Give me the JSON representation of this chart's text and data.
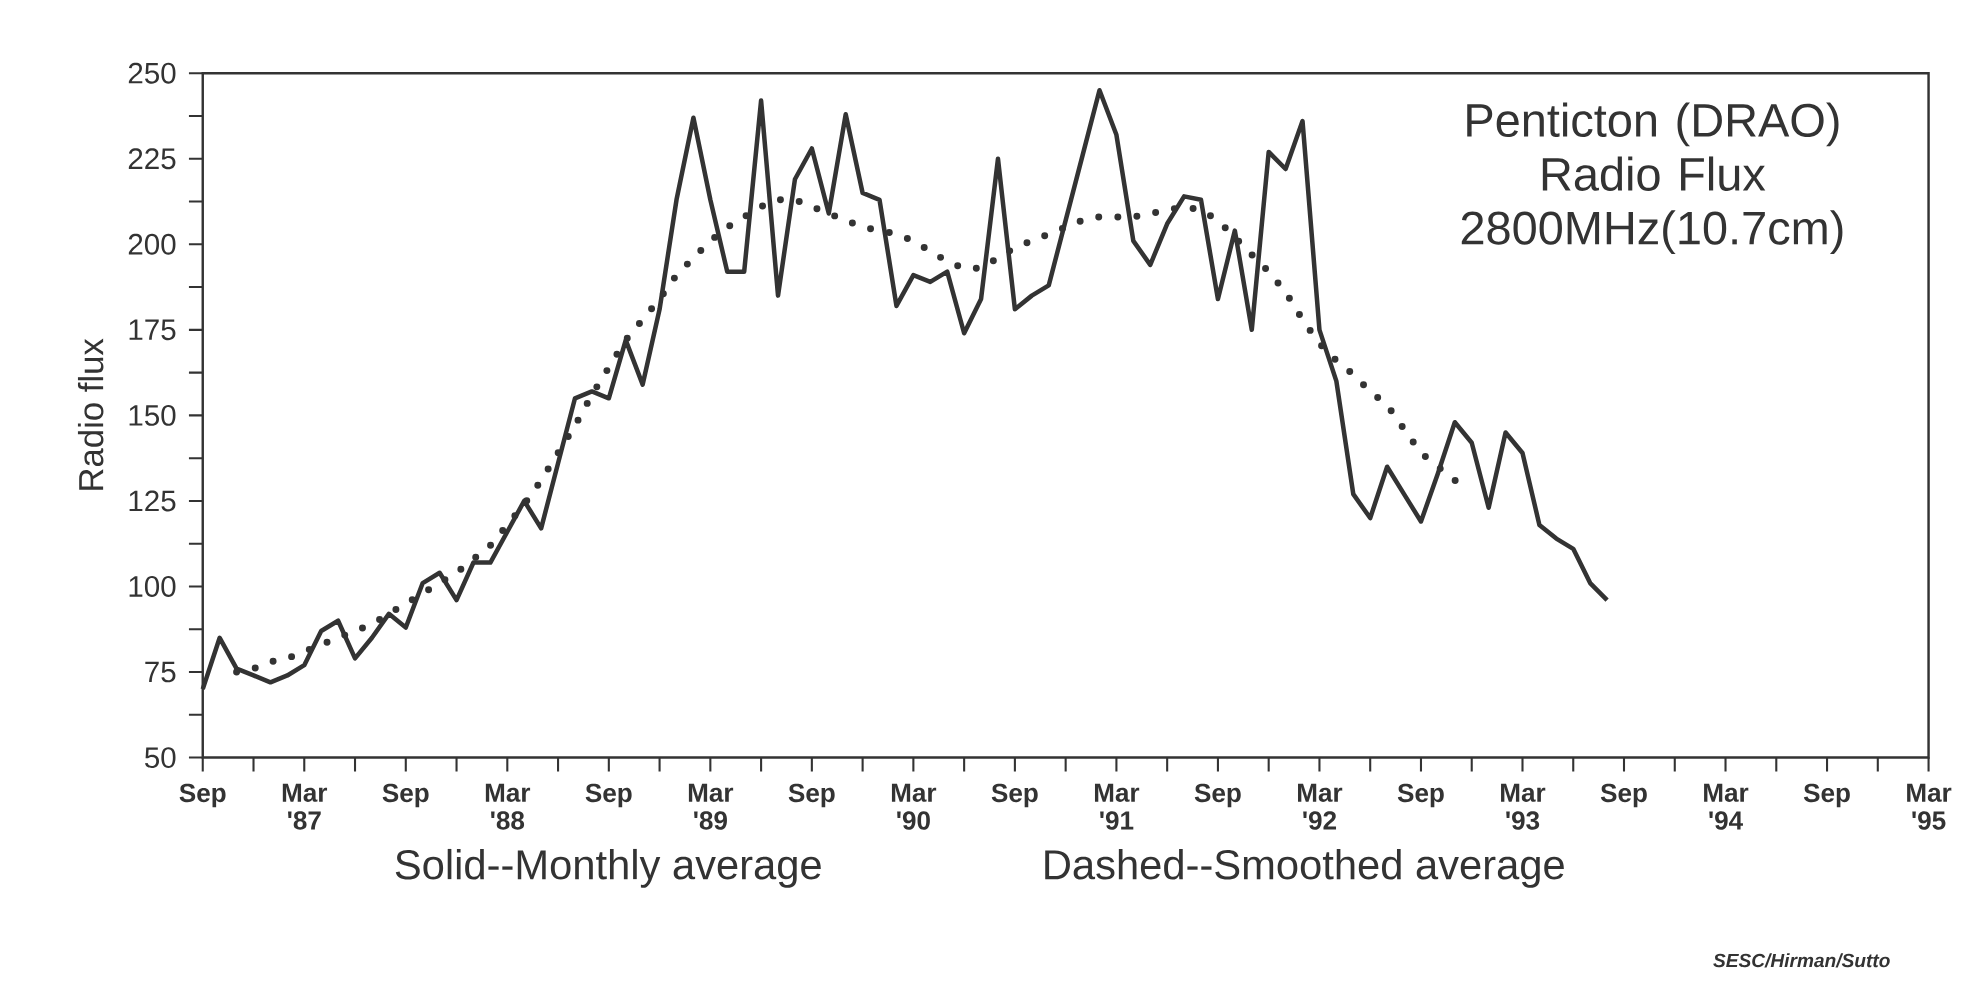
{
  "chart_data": {
    "type": "line",
    "title": "Penticton (DRAO) Radio Flux 2800MHz(10.7cm)",
    "ylabel": "Radio flux",
    "annotations": [
      "Solid--Monthly average",
      "Dashed--Smoothed average",
      "SESC/Hirman/Sutto"
    ],
    "x": [
      "1986-09",
      "1986-10",
      "1986-11",
      "1986-12",
      "1987-01",
      "1987-02",
      "1987-03",
      "1987-04",
      "1987-05",
      "1987-06",
      "1987-07",
      "1987-08",
      "1987-09",
      "1987-10",
      "1987-11",
      "1987-12",
      "1988-01",
      "1988-02",
      "1988-03",
      "1988-04",
      "1988-05",
      "1988-06",
      "1988-07",
      "1988-08",
      "1988-09",
      "1988-10",
      "1988-11",
      "1988-12",
      "1989-01",
      "1989-02",
      "1989-03",
      "1989-04",
      "1989-05",
      "1989-06",
      "1989-07",
      "1989-08",
      "1989-09",
      "1989-10",
      "1989-11",
      "1989-12",
      "1990-01",
      "1990-02",
      "1990-03",
      "1990-04",
      "1990-05",
      "1990-06",
      "1990-07",
      "1990-08",
      "1990-09",
      "1990-10",
      "1990-11",
      "1990-12",
      "1991-01",
      "1991-02",
      "1991-03",
      "1991-04",
      "1991-05",
      "1991-06",
      "1991-07",
      "1991-08",
      "1991-09",
      "1991-10",
      "1991-11",
      "1991-12",
      "1992-01",
      "1992-02",
      "1992-03",
      "1992-04",
      "1992-05",
      "1992-06",
      "1992-07",
      "1992-08",
      "1992-09",
      "1992-10",
      "1992-11",
      "1992-12",
      "1993-01",
      "1993-02",
      "1993-03",
      "1993-04",
      "1993-05",
      "1993-06",
      "1993-07",
      "1993-08"
    ],
    "series": [
      {
        "color": "#333333",
        "line_style": "solid",
        "values": [
          70,
          85,
          76,
          74,
          72,
          74,
          77,
          87,
          90,
          79,
          85,
          92,
          88,
          101,
          104,
          96,
          107,
          107,
          116,
          125,
          117,
          136,
          155,
          157,
          155,
          172,
          159,
          181,
          213,
          237,
          213,
          192,
          192,
          242,
          185,
          219,
          228,
          209,
          238,
          215,
          213,
          182,
          191,
          189,
          192,
          174,
          184,
          225,
          181,
          185,
          188,
          207,
          226,
          245,
          232,
          201,
          194,
          206,
          214,
          213,
          184,
          204,
          175,
          227,
          222,
          236,
          175,
          160,
          127,
          120,
          135,
          127,
          119,
          133,
          148,
          142,
          123,
          145,
          139,
          118,
          114,
          111,
          101,
          96
        ]
      },
      {
        "color": "#333333",
        "line_style": "dotted",
        "values": [
          null,
          null,
          75,
          76,
          78,
          79,
          81,
          83,
          85,
          87,
          89,
          92,
          95,
          98,
          101,
          104,
          108,
          112,
          118,
          124,
          131,
          139,
          147,
          156,
          164,
          172,
          178,
          184,
          191,
          196,
          201,
          205,
          208,
          211,
          213,
          213,
          211,
          209,
          207,
          205,
          204,
          203,
          201,
          198,
          195,
          193,
          193,
          196,
          199,
          201,
          203,
          205,
          207,
          208,
          208,
          208,
          209,
          210,
          211,
          210,
          207,
          202,
          197,
          192,
          186,
          178,
          171,
          166,
          162,
          157,
          153,
          146,
          139,
          135,
          131,
          129,
          null,
          null,
          null,
          null,
          null,
          null,
          null,
          null
        ]
      }
    ],
    "marker": "none",
    "xlim": [
      "1986-09",
      "1995-03"
    ],
    "xticks": [
      {
        "value": "1986-09",
        "label": "Sep"
      },
      {
        "value": "1986-12",
        "label": null
      },
      {
        "value": "1987-03",
        "label": "Mar '87"
      },
      {
        "value": "1987-06",
        "label": null
      },
      {
        "value": "1987-09",
        "label": "Sep"
      },
      {
        "value": "1987-12",
        "label": null
      },
      {
        "value": "1988-03",
        "label": "Mar '88"
      },
      {
        "value": "1988-06",
        "label": null
      },
      {
        "value": "1988-09",
        "label": "Sep"
      },
      {
        "value": "1988-12",
        "label": null
      },
      {
        "value": "1989-03",
        "label": "Mar '89"
      },
      {
        "value": "1989-06",
        "label": null
      },
      {
        "value": "1989-09",
        "label": "Sep"
      },
      {
        "value": "1989-12",
        "label": null
      },
      {
        "value": "1990-03",
        "label": "Mar '90"
      },
      {
        "value": "1990-06",
        "label": null
      },
      {
        "value": "1990-09",
        "label": "Sep"
      },
      {
        "value": "1990-12",
        "label": null
      },
      {
        "value": "1991-03",
        "label": "Mar '91"
      },
      {
        "value": "1991-06",
        "label": null
      },
      {
        "value": "1991-09",
        "label": "Sep"
      },
      {
        "value": "1991-12",
        "label": null
      },
      {
        "value": "1992-03",
        "label": "Mar '92"
      },
      {
        "value": "1992-06",
        "label": null
      },
      {
        "value": "1992-09",
        "label": "Sep"
      },
      {
        "value": "1992-12",
        "label": null
      },
      {
        "value": "1993-03",
        "label": "Mar '93"
      },
      {
        "value": "1993-06",
        "label": null
      },
      {
        "value": "1993-09",
        "label": "Sep"
      },
      {
        "value": "1993-12",
        "label": null
      },
      {
        "value": "1994-03",
        "label": "Mar '94"
      },
      {
        "value": "1994-06",
        "label": null
      },
      {
        "value": "1994-09",
        "label": "Sep"
      },
      {
        "value": "1994-12",
        "label": null
      },
      {
        "value": "1995-03",
        "label": "Mar '95"
      }
    ],
    "ylim": [
      50,
      250
    ],
    "yticks": [
      50,
      {
        "value": 62.5,
        "label": null
      },
      75,
      {
        "value": 87.5,
        "label": null
      },
      100,
      {
        "value": 112.5,
        "label": null
      },
      125,
      {
        "value": 137.5,
        "label": null
      },
      150,
      {
        "value": 162.5,
        "label": null
      },
      175,
      {
        "value": 187.5,
        "label": null
      },
      200,
      {
        "value": 212.5,
        "label": null
      },
      225,
      {
        "value": 237.5,
        "label": null
      },
      250
    ]
  }
}
